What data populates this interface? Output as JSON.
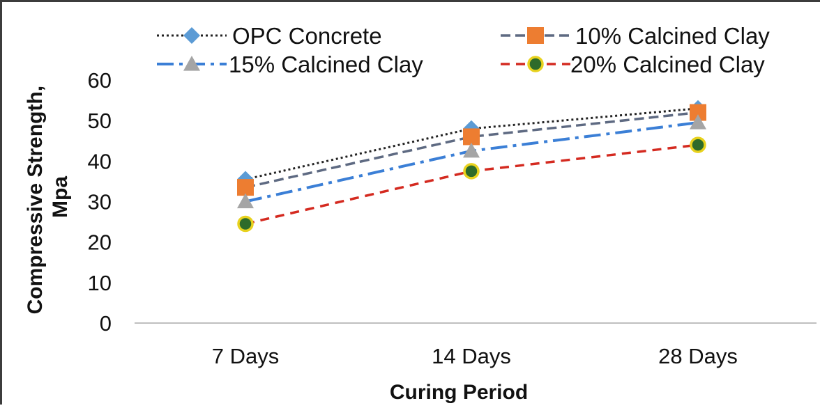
{
  "chart_data": {
    "type": "line",
    "title": "",
    "xlabel": "Curing Period",
    "ylabel": [
      "Compressive Strength,",
      "Mpa"
    ],
    "categories": [
      "7 Days",
      "14 Days",
      "28 Days"
    ],
    "ylim": [
      0,
      60
    ],
    "yticks": [
      "0",
      "10",
      "20",
      "30",
      "40",
      "50",
      "60"
    ],
    "grid": false,
    "legend_position": "top",
    "series": [
      {
        "name": "OPC Concrete",
        "values": [
          35.5,
          48,
          53
        ],
        "color": "#222222",
        "marker_color": "#5b9bd5",
        "marker": "diamond",
        "line_style": "dotted"
      },
      {
        "name": "10% Calcined Clay",
        "values": [
          33.5,
          46,
          52
        ],
        "color": "#5e6a82",
        "marker_color": "#ed7d31",
        "marker": "square",
        "line_style": "dash"
      },
      {
        "name": "15% Calcined Clay",
        "values": [
          30,
          42.5,
          49.5
        ],
        "color": "#3b7fd6",
        "marker_color": "#a5a5a5",
        "marker": "triangle",
        "line_style": "dash-dot"
      },
      {
        "name": "20% Calcined Clay",
        "values": [
          24.5,
          37.5,
          44
        ],
        "color": "#d42a20",
        "marker_color": "#2e6b2a",
        "marker_stroke": "#e8d21e",
        "marker": "circle",
        "line_style": "dashed"
      }
    ]
  }
}
